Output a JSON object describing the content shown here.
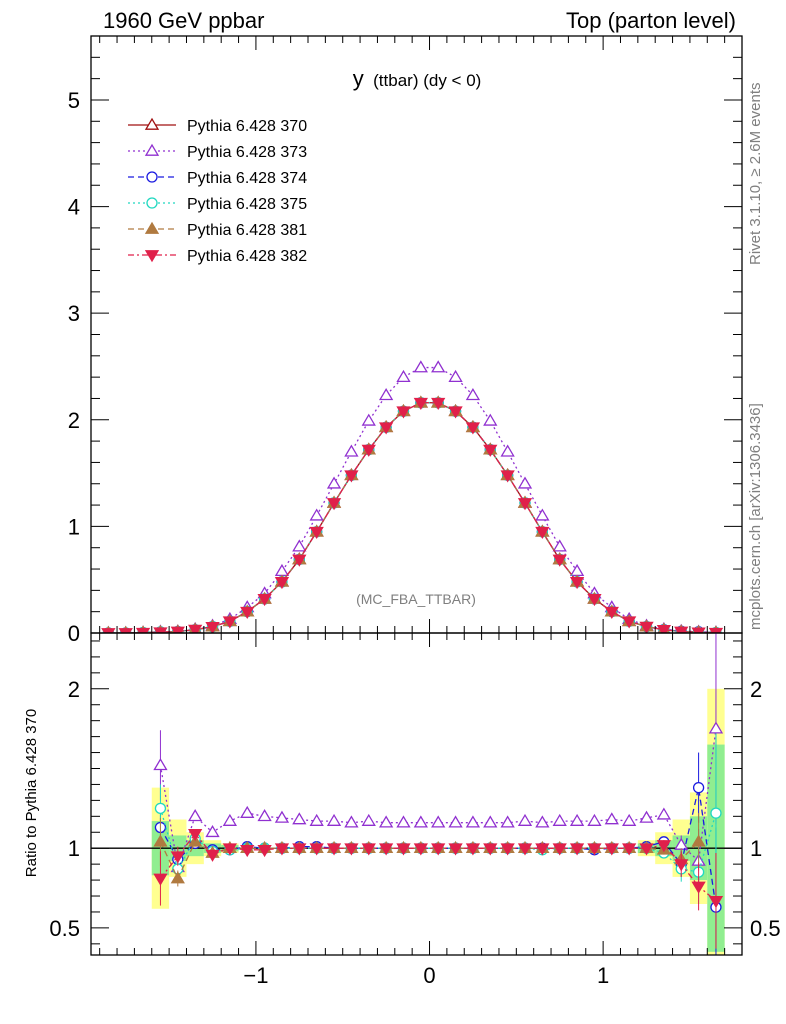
{
  "header": {
    "left": "1960 GeV ppbar",
    "right": "Top (parton level)"
  },
  "side": {
    "rivet": "Rivet 3.1.10, ≥ 2.6M events",
    "mcplots": "mcplots.cern.ch [arXiv:1306.3436]"
  },
  "chart_data": {
    "type": "line",
    "title_main": "y",
    "title_rest": "(ttbar) (dy < 0)",
    "watermark": "(MC_FBA_TTBAR)",
    "ratio_ylabel": "Ratio to Pythia 6.428 370",
    "xlim": [
      -1.95,
      1.8
    ],
    "ylim": [
      0,
      5.6
    ],
    "ratio_ylim": [
      0.33,
      2.35
    ],
    "x_ticks": [
      -1,
      0,
      1
    ],
    "x_tick_labels": [
      "−1",
      "0",
      "1"
    ],
    "y_ticks": [
      0,
      1,
      2,
      3,
      4,
      5
    ],
    "y_tick_labels": [
      "0",
      "1",
      "2",
      "3",
      "4",
      "5"
    ],
    "ratio_ticks": [
      0.5,
      1,
      2
    ],
    "ratio_tick_labels": [
      "0.5",
      "1",
      "2"
    ],
    "x": [
      -1.85,
      -1.75,
      -1.65,
      -1.55,
      -1.45,
      -1.35,
      -1.25,
      -1.15,
      -1.05,
      -0.95,
      -0.85,
      -0.75,
      -0.65,
      -0.55,
      -0.45,
      -0.35,
      -0.25,
      -0.15,
      -0.05,
      0.05,
      0.15,
      0.25,
      0.35,
      0.45,
      0.55,
      0.65,
      0.75,
      0.85,
      0.95,
      1.05,
      1.15,
      1.25,
      1.35,
      1.45,
      1.55,
      1.65
    ],
    "series": [
      {
        "name": "Pythia 6.428 370",
        "color": "#a01010",
        "marker": "triangle-open",
        "dash": "",
        "values": [
          0.0,
          0.0,
          0.003,
          0.008,
          0.015,
          0.03,
          0.06,
          0.11,
          0.2,
          0.32,
          0.48,
          0.69,
          0.95,
          1.22,
          1.48,
          1.72,
          1.93,
          2.08,
          2.16,
          2.16,
          2.08,
          1.93,
          1.72,
          1.48,
          1.22,
          0.95,
          0.69,
          0.48,
          0.32,
          0.2,
          0.11,
          0.06,
          0.03,
          0.015,
          0.008,
          0.003
        ],
        "ratio": [
          null,
          null,
          null,
          null,
          null,
          null,
          null,
          null,
          null,
          null,
          null,
          null,
          null,
          null,
          null,
          null,
          null,
          null,
          null,
          null,
          null,
          null,
          null,
          null,
          null,
          null,
          null,
          null,
          null,
          null,
          null,
          null,
          null,
          null,
          null,
          null
        ]
      },
      {
        "name": "Pythia 6.428 373",
        "color": "#9030d0",
        "marker": "triangle-open",
        "dash": "2,3",
        "values": [
          0.0,
          0.0,
          0.004,
          0.013,
          0.014,
          0.036,
          0.068,
          0.13,
          0.24,
          0.37,
          0.58,
          0.81,
          1.1,
          1.4,
          1.7,
          1.99,
          2.23,
          2.4,
          2.49,
          2.49,
          2.4,
          2.23,
          1.99,
          1.7,
          1.4,
          1.1,
          0.81,
          0.58,
          0.37,
          0.24,
          0.13,
          0.068,
          0.036,
          0.018,
          0.012,
          0.006
        ],
        "ratio": [
          null,
          null,
          null,
          1.52,
          0.88,
          1.2,
          1.1,
          1.17,
          1.22,
          1.2,
          1.19,
          1.18,
          1.17,
          1.17,
          1.16,
          1.17,
          1.16,
          1.16,
          1.16,
          1.16,
          1.16,
          1.16,
          1.16,
          1.16,
          1.17,
          1.16,
          1.17,
          1.17,
          1.17,
          1.18,
          1.17,
          1.19,
          1.21,
          1.02,
          0.92,
          1.75
        ],
        "ratio_err": [
          0,
          0,
          0,
          0.22,
          0.03,
          0.02,
          0.02,
          0.02,
          0.01,
          0.01,
          0.01,
          0.01,
          0.01,
          0.01,
          0.01,
          0.01,
          0.01,
          0.01,
          0.01,
          0.01,
          0.01,
          0.01,
          0.01,
          0.01,
          0.01,
          0.01,
          0.01,
          0.01,
          0.01,
          0.01,
          0.01,
          0.02,
          0.02,
          0.06,
          0.2,
          0.6
        ]
      },
      {
        "name": "Pythia 6.428 374",
        "color": "#1a1ae0",
        "marker": "circle-open",
        "dash": "6,4",
        "values": [
          0.0,
          0.0,
          0.003,
          0.009,
          0.014,
          0.03,
          0.06,
          0.11,
          0.2,
          0.32,
          0.48,
          0.69,
          0.95,
          1.22,
          1.48,
          1.72,
          1.93,
          2.08,
          2.16,
          2.16,
          2.08,
          1.93,
          1.72,
          1.48,
          1.22,
          0.95,
          0.69,
          0.48,
          0.32,
          0.2,
          0.11,
          0.06,
          0.031,
          0.016,
          0.011,
          0.002
        ],
        "ratio": [
          null,
          null,
          null,
          1.13,
          0.93,
          1.03,
          0.99,
          0.99,
          1.01,
          1.0,
          1.0,
          1.01,
          1.01,
          1.0,
          1.0,
          1.0,
          1.0,
          1.0,
          1.0,
          1.0,
          1.0,
          1.0,
          1.0,
          1.0,
          1.0,
          1.0,
          1.0,
          1.0,
          0.99,
          1.0,
          1.0,
          1.01,
          1.04,
          0.9,
          1.38,
          0.63
        ],
        "ratio_err": [
          0,
          0,
          0,
          0.12,
          0.05,
          0.03,
          0.02,
          0.02,
          0.01,
          0.01,
          0.01,
          0.01,
          0.01,
          0.01,
          0.01,
          0.01,
          0.01,
          0.01,
          0.01,
          0.01,
          0.01,
          0.01,
          0.01,
          0.01,
          0.01,
          0.01,
          0.01,
          0.01,
          0.01,
          0.01,
          0.01,
          0.02,
          0.03,
          0.08,
          0.22,
          0.5
        ]
      },
      {
        "name": "Pythia 6.428 375",
        "color": "#20d8c0",
        "marker": "circle-open",
        "dash": "2,3",
        "values": [
          0.0,
          0.0,
          0.004,
          0.01,
          0.013,
          0.03,
          0.059,
          0.11,
          0.2,
          0.32,
          0.48,
          0.69,
          0.95,
          1.22,
          1.48,
          1.72,
          1.93,
          2.08,
          2.16,
          2.16,
          2.08,
          1.93,
          1.72,
          1.48,
          1.22,
          0.95,
          0.69,
          0.48,
          0.32,
          0.2,
          0.11,
          0.06,
          0.029,
          0.013,
          0.007,
          0.004
        ],
        "ratio": [
          null,
          null,
          null,
          1.25,
          0.87,
          1.06,
          0.98,
          0.99,
          1.0,
          1.0,
          1.0,
          1.0,
          1.0,
          1.0,
          1.0,
          1.0,
          1.0,
          1.0,
          1.0,
          1.0,
          1.0,
          1.0,
          1.0,
          1.0,
          1.0,
          0.99,
          1.0,
          1.0,
          1.0,
          1.0,
          1.0,
          1.0,
          0.97,
          0.87,
          0.85,
          1.22
        ],
        "ratio_err": [
          0,
          0,
          0,
          0.15,
          0.05,
          0.03,
          0.02,
          0.02,
          0.01,
          0.01,
          0.01,
          0.01,
          0.01,
          0.01,
          0.01,
          0.01,
          0.01,
          0.01,
          0.01,
          0.01,
          0.01,
          0.01,
          0.01,
          0.01,
          0.01,
          0.01,
          0.01,
          0.01,
          0.01,
          0.01,
          0.01,
          0.02,
          0.03,
          0.08,
          0.2,
          0.5
        ]
      },
      {
        "name": "Pythia 6.428 381",
        "color": "#b07a40",
        "marker": "triangle-filled",
        "dash": "6,4",
        "values": [
          0.0,
          0.0,
          0.003,
          0.008,
          0.012,
          0.031,
          0.06,
          0.11,
          0.2,
          0.32,
          0.48,
          0.69,
          0.95,
          1.22,
          1.48,
          1.72,
          1.93,
          2.08,
          2.16,
          2.16,
          2.08,
          1.93,
          1.72,
          1.48,
          1.22,
          0.95,
          0.69,
          0.48,
          0.32,
          0.2,
          0.11,
          0.06,
          0.03,
          0.014,
          0.008,
          0.003
        ],
        "ratio": [
          null,
          null,
          null,
          1.04,
          0.81,
          1.04,
          0.97,
          1.0,
          1.0,
          1.0,
          1.0,
          1.0,
          1.0,
          1.0,
          1.0,
          1.0,
          1.0,
          1.0,
          1.0,
          1.0,
          1.0,
          1.0,
          1.0,
          1.0,
          1.0,
          1.0,
          1.0,
          1.0,
          1.0,
          1.0,
          1.0,
          1.0,
          0.99,
          0.93,
          1.04,
          null
        ],
        "ratio_err": [
          0,
          0,
          0,
          0.15,
          0.05,
          0.03,
          0.02,
          0.02,
          0.01,
          0.01,
          0.01,
          0.01,
          0.01,
          0.01,
          0.01,
          0.01,
          0.01,
          0.01,
          0.01,
          0.01,
          0.01,
          0.01,
          0.01,
          0.01,
          0.01,
          0.01,
          0.01,
          0.01,
          0.01,
          0.01,
          0.01,
          0.02,
          0.03,
          0.07,
          0.18,
          0
        ]
      },
      {
        "name": "Pythia 6.428 382",
        "color": "#e0204a",
        "marker": "triangle-down-filled",
        "dash": "6,3,2,3",
        "values": [
          0.0,
          0.0,
          0.003,
          0.007,
          0.014,
          0.032,
          0.058,
          0.11,
          0.2,
          0.32,
          0.48,
          0.69,
          0.95,
          1.22,
          1.48,
          1.72,
          1.93,
          2.08,
          2.16,
          2.16,
          2.08,
          1.93,
          1.72,
          1.48,
          1.22,
          0.95,
          0.69,
          0.48,
          0.32,
          0.2,
          0.11,
          0.06,
          0.03,
          0.014,
          0.006,
          0.002
        ],
        "ratio": [
          null,
          null,
          null,
          0.81,
          0.95,
          1.09,
          0.96,
          1.0,
          0.99,
          0.99,
          1.0,
          1.0,
          1.0,
          1.0,
          1.0,
          1.0,
          1.0,
          1.0,
          1.0,
          1.0,
          1.0,
          1.0,
          1.0,
          1.0,
          1.0,
          1.0,
          1.0,
          1.0,
          1.0,
          1.0,
          1.0,
          1.0,
          1.02,
          0.9,
          0.76,
          0.67
        ],
        "ratio_err": [
          0,
          0,
          0,
          0.17,
          0.06,
          0.03,
          0.02,
          0.02,
          0.01,
          0.01,
          0.01,
          0.01,
          0.01,
          0.01,
          0.01,
          0.01,
          0.01,
          0.01,
          0.01,
          0.01,
          0.01,
          0.01,
          0.01,
          0.01,
          0.01,
          0.01,
          0.01,
          0.01,
          0.01,
          0.01,
          0.01,
          0.02,
          0.03,
          0.08,
          0.15,
          0.3
        ]
      }
    ],
    "reference_band": {
      "x": [
        -1.55,
        -1.45,
        -1.35,
        -1.25,
        -1.15,
        1.25,
        1.35,
        1.45,
        1.55,
        1.65
      ],
      "inner": [
        0.17,
        0.08,
        0.05,
        0.03,
        0.02,
        0.03,
        0.05,
        0.08,
        0.2,
        0.65
      ],
      "outer": [
        0.38,
        0.18,
        0.1,
        0.05,
        0.03,
        0.05,
        0.1,
        0.18,
        0.35,
        1.0
      ]
    }
  }
}
